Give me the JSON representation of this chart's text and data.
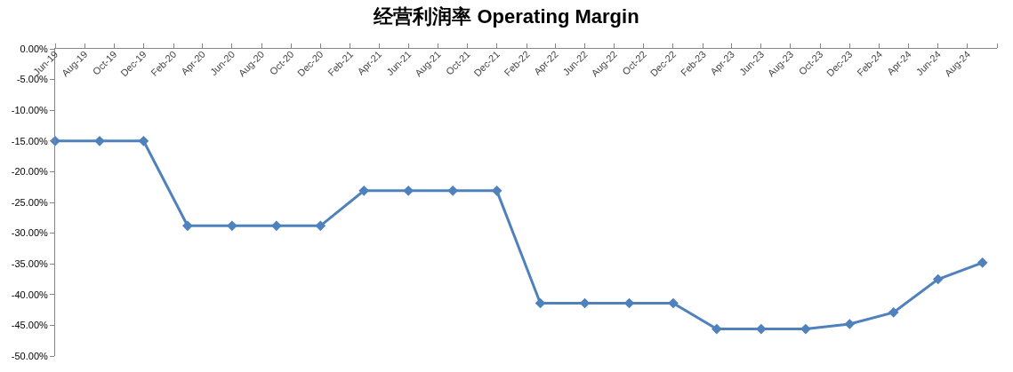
{
  "chart_data": {
    "type": "line",
    "title": "经营利润率 Operating Margin",
    "x": [
      "2019-06",
      "2019-09",
      "2019-12",
      "2020-03",
      "2020-06",
      "2020-09",
      "2020-12",
      "2021-03",
      "2021-06",
      "2021-09",
      "2021-12",
      "2022-03",
      "2022-06",
      "2022-09",
      "2022-12",
      "2023-03",
      "2023-06",
      "2023-09",
      "2023-12",
      "2024-03",
      "2024-06",
      "2024-09"
    ],
    "series": [
      {
        "color": "#4f81bd",
        "values": [
          -15,
          -15,
          -15,
          -28.8,
          -28.8,
          -28.8,
          -28.8,
          -23.1,
          -23.1,
          -23.1,
          -23.1,
          -41.4,
          -41.4,
          -41.4,
          -41.4,
          -45.6,
          -45.6,
          -45.6,
          -44.8,
          -42.9,
          -37.5,
          -34.8
        ]
      }
    ],
    "xlim": [
      "2019-06",
      "2024-10"
    ],
    "xticks": [
      {
        "value": "2019-06",
        "label": "Jun-19"
      },
      {
        "value": "2019-08",
        "label": "Aug-19"
      },
      {
        "value": "2019-10",
        "label": "Oct-19"
      },
      {
        "value": "2019-12",
        "label": "Dec-19"
      },
      {
        "value": "2020-02",
        "label": "Feb-20"
      },
      {
        "value": "2020-04",
        "label": "Apr-20"
      },
      {
        "value": "2020-06",
        "label": "Jun-20"
      },
      {
        "value": "2020-08",
        "label": "Aug-20"
      },
      {
        "value": "2020-10",
        "label": "Oct-20"
      },
      {
        "value": "2020-12",
        "label": "Dec-20"
      },
      {
        "value": "2021-02",
        "label": "Feb-21"
      },
      {
        "value": "2021-04",
        "label": "Apr-21"
      },
      {
        "value": "2021-06",
        "label": "Jun-21"
      },
      {
        "value": "2021-08",
        "label": "Aug-21"
      },
      {
        "value": "2021-10",
        "label": "Oct-21"
      },
      {
        "value": "2021-12",
        "label": "Dec-21"
      },
      {
        "value": "2022-02",
        "label": "Feb-22"
      },
      {
        "value": "2022-04",
        "label": "Apr-22"
      },
      {
        "value": "2022-06",
        "label": "Jun-22"
      },
      {
        "value": "2022-08",
        "label": "Aug-22"
      },
      {
        "value": "2022-10",
        "label": "Oct-22"
      },
      {
        "value": "2022-12",
        "label": "Dec-22"
      },
      {
        "value": "2023-02",
        "label": "Feb-23"
      },
      {
        "value": "2023-04",
        "label": "Apr-23"
      },
      {
        "value": "2023-06",
        "label": "Jun-23"
      },
      {
        "value": "2023-08",
        "label": "Aug-23"
      },
      {
        "value": "2023-10",
        "label": "Oct-23"
      },
      {
        "value": "2023-12",
        "label": "Dec-23"
      },
      {
        "value": "2024-02",
        "label": "Feb-24"
      },
      {
        "value": "2024-04",
        "label": "Apr-24"
      },
      {
        "value": "2024-06",
        "label": "Jun-24"
      },
      {
        "value": "2024-08",
        "label": "Aug-24"
      },
      {
        "value": "2024-10",
        "label": null
      }
    ],
    "ylim": [
      -50,
      0
    ],
    "yticks": [
      {
        "value": 0,
        "label": "0.00%"
      },
      {
        "value": -5,
        "label": "-5.00%"
      },
      {
        "value": -10,
        "label": "-10.00%"
      },
      {
        "value": -15,
        "label": "-15.00%"
      },
      {
        "value": -20,
        "label": "-20.00%"
      },
      {
        "value": -25,
        "label": "-25.00%"
      },
      {
        "value": -30,
        "label": "-30.00%"
      },
      {
        "value": -35,
        "label": "-35.00%"
      },
      {
        "value": -40,
        "label": "-40.00%"
      },
      {
        "value": -45,
        "label": "-45.00%"
      },
      {
        "value": -50,
        "label": "-50.00%"
      }
    ],
    "marker": "diamond",
    "line_style": "solid"
  }
}
